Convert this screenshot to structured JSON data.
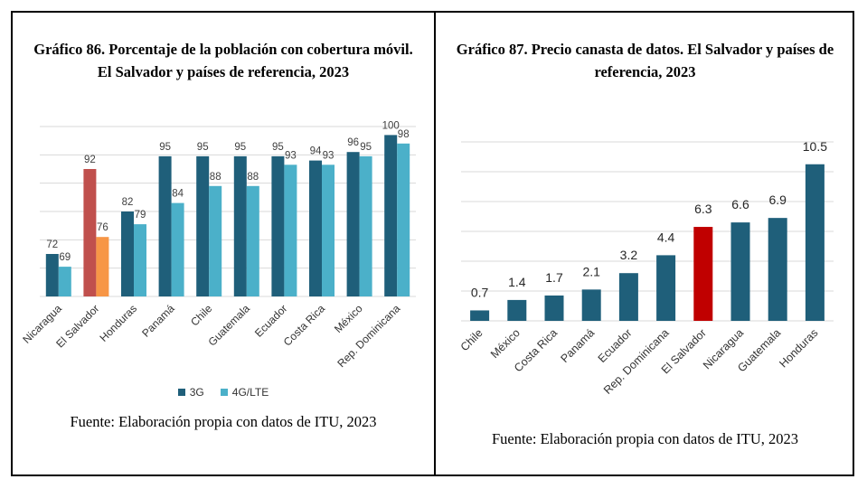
{
  "left": {
    "title_line1": "Gráfico 86. Porcentaje de la población con cobertura móvil.",
    "title_line2": "El Salvador y países de referencia, 2023",
    "source": "Fuente: Elaboración propia con datos de ITU, 2023"
  },
  "right": {
    "title_line1": "Gráfico 87. Precio canasta de datos. El Salvador y países de",
    "title_line2": "referencia, 2023",
    "source": "Fuente: Elaboración propia con datos de ITU, 2023"
  },
  "chart_data": [
    {
      "type": "bar",
      "title": "Gráfico 86. Porcentaje de la población con cobertura móvil. El Salvador y países de referencia, 2023",
      "categories": [
        "Nicaragua",
        "El Salvador",
        "Honduras",
        "Panamá",
        "Chile",
        "Guatemala",
        "Ecuador",
        "Costa Rica",
        "México",
        "Rep. Dominicana"
      ],
      "series": [
        {
          "name": "3G",
          "values": [
            72,
            92,
            82,
            95,
            95,
            95,
            95,
            94,
            96,
            100
          ],
          "color": "#1f5f7a"
        },
        {
          "name": "4G/LTE",
          "values": [
            69,
            76,
            79,
            84,
            88,
            88,
            93,
            93,
            95,
            98
          ],
          "color": "#4bb0c9"
        }
      ],
      "highlight": {
        "category": "El Salvador",
        "colors": {
          "3G": "#c0504d",
          "4G/LTE": "#f79646"
        }
      },
      "ylim": [
        62,
        102
      ],
      "grid": true,
      "legend": "bottom",
      "xlabel": "",
      "ylabel": ""
    },
    {
      "type": "bar",
      "title": "Gráfico 87. Precio canasta de datos. El Salvador y países de referencia, 2023",
      "categories": [
        "Chile",
        "México",
        "Costa Rica",
        "Panamá",
        "Ecuador",
        "Rep. Dominicana",
        "El Salvador",
        "Nicaragua",
        "Guatemala",
        "Honduras"
      ],
      "values": [
        0.7,
        1.4,
        1.7,
        2.1,
        3.2,
        4.4,
        6.3,
        6.6,
        6.9,
        10.5
      ],
      "color": "#1f5f7a",
      "highlight": {
        "category": "El Salvador",
        "color": "#c00000"
      },
      "ylim": [
        0,
        12
      ],
      "grid": true,
      "xlabel": "",
      "ylabel": ""
    }
  ]
}
